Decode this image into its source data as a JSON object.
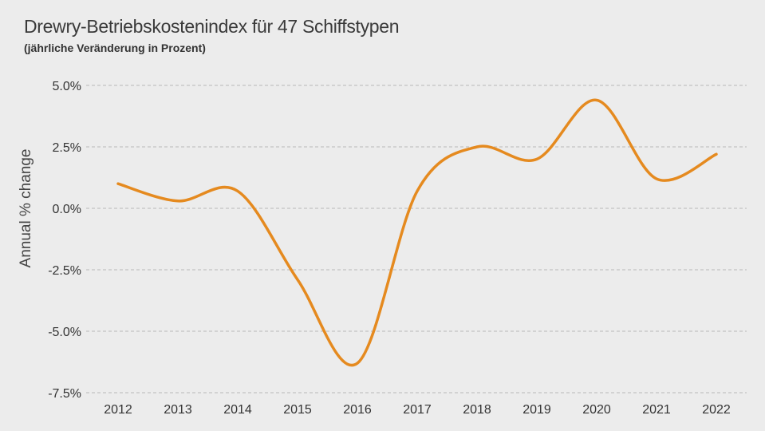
{
  "chart_data": {
    "type": "line",
    "title": "Drewry-Betriebskostenindex für 47 Schiffstypen",
    "subtitle": "(jährliche Veränderung in Prozent)",
    "xlabel": "",
    "ylabel": "Annual % change",
    "x": [
      2012,
      2013,
      2014,
      2015,
      2016,
      2017,
      2018,
      2019,
      2020,
      2021,
      2022
    ],
    "ylim": [
      -7.5,
      5.0
    ],
    "yticks": [
      5.0,
      2.5,
      0.0,
      -2.5,
      -5.0,
      -7.5
    ],
    "ytick_labels": [
      "5.0%",
      "2.5%",
      "0.0%",
      "-2.5%",
      "-5.0%",
      "-7.5%"
    ],
    "xtick_labels": [
      "2012",
      "2013",
      "2014",
      "2015",
      "2016",
      "2017",
      "2018",
      "2019",
      "2020",
      "2021",
      "2022"
    ],
    "series": [
      {
        "values": [
          1.0,
          0.3,
          0.7,
          -2.9,
          -6.3,
          0.7,
          2.5,
          2.0,
          4.4,
          1.2,
          2.2
        ]
      }
    ],
    "line_color": "#e58a1f",
    "grid": "horizontal dashed",
    "legend": "none"
  }
}
